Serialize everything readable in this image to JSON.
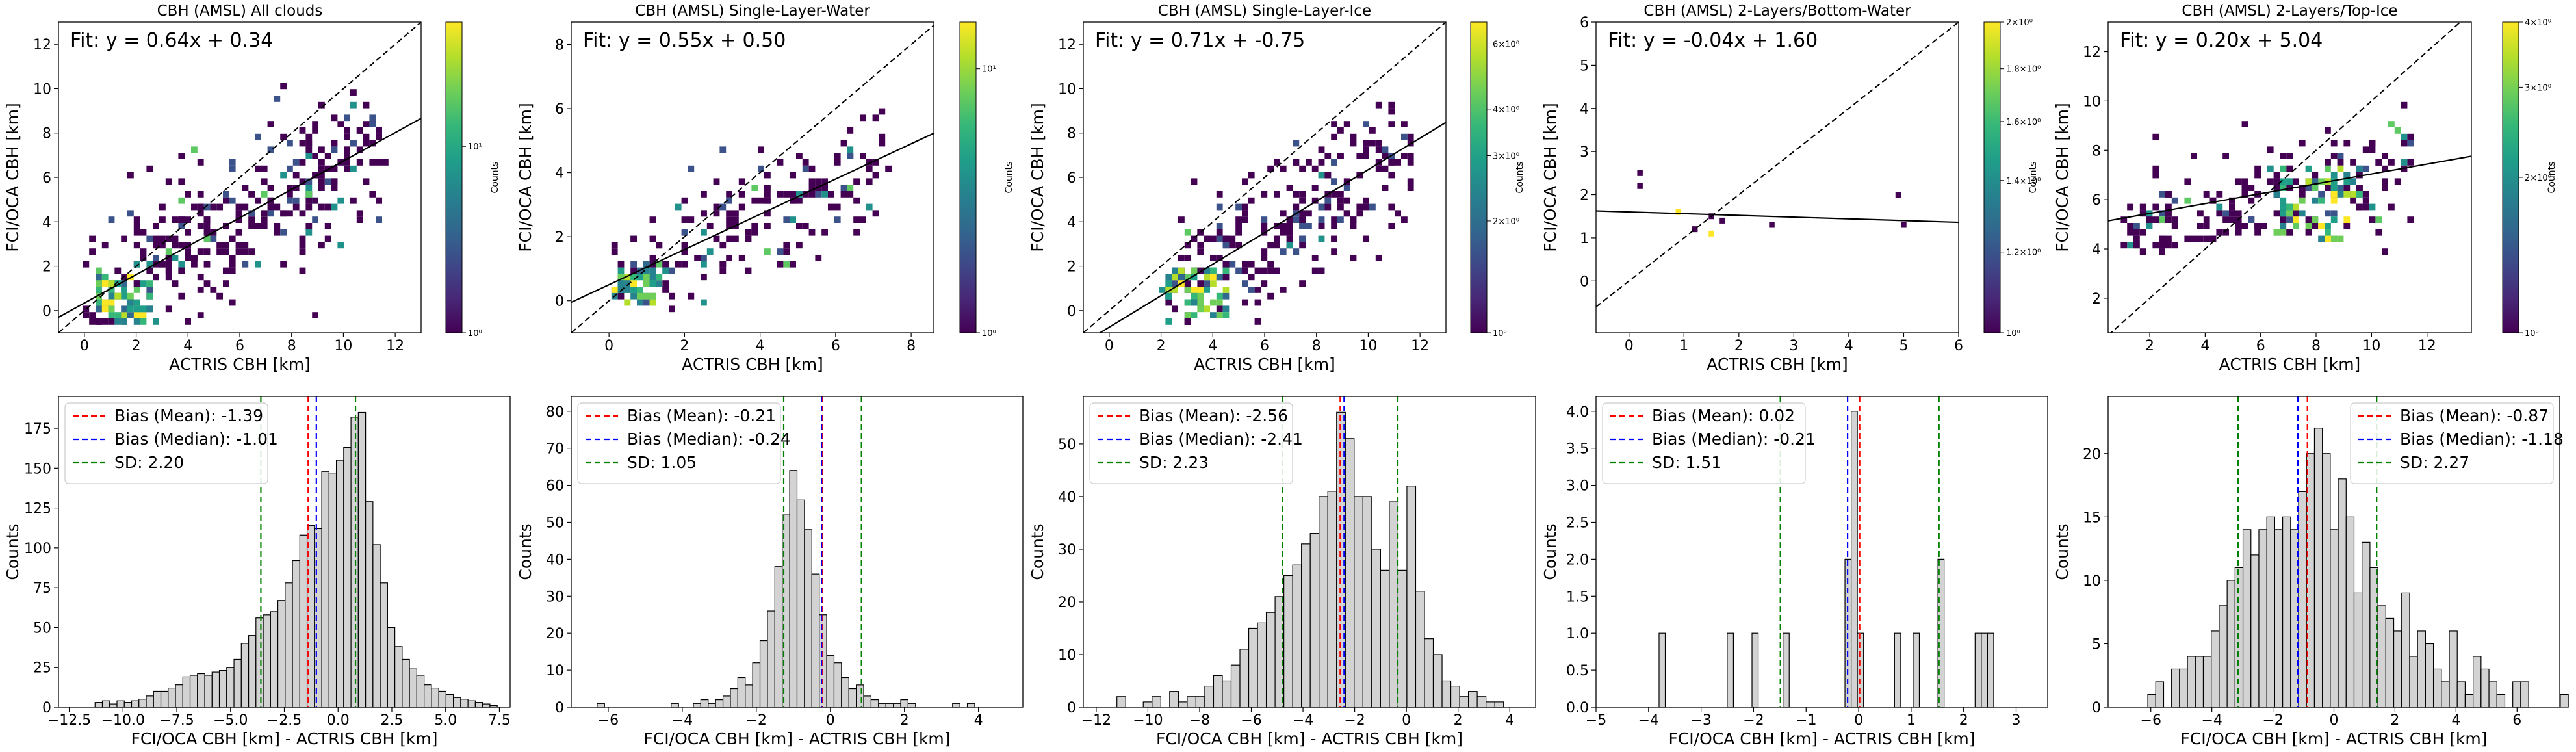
{
  "colors": {
    "bias_mean": "#ff0000",
    "bias_median": "#0000ff",
    "sd": "#008000",
    "hist_fill": "#d3d3d3",
    "hist_edge": "#000000",
    "viridis": [
      "#440154",
      "#482878",
      "#3e4989",
      "#31688e",
      "#26828e",
      "#1f9e89",
      "#35b779",
      "#6ece58",
      "#b5de2b",
      "#fde725"
    ]
  },
  "chart_data": [
    {
      "type": "heatmap",
      "title": "CBH (AMSL) All clouds",
      "xlabel": "ACTRIS CBH [km]",
      "ylabel": "FCI/OCA CBH [km]",
      "fit_text": "Fit: y = 0.64x + 0.34",
      "fit": {
        "slope": 0.64,
        "intercept": 0.34
      },
      "xlim": [
        -1,
        13
      ],
      "ylim": [
        -1,
        13
      ],
      "xticks": [
        0,
        2,
        4,
        6,
        8,
        10,
        12
      ],
      "yticks": [
        0,
        2,
        4,
        6,
        8,
        10,
        12
      ],
      "colorbar": {
        "label": "Counts",
        "scale": "log",
        "ticks": [
          "10⁰",
          "10¹"
        ],
        "tick_fracs": [
          0.0,
          0.6
        ]
      },
      "cloud": {
        "x_range": [
          0,
          11.5
        ],
        "y_range": [
          -0.5,
          10.5
        ],
        "slope": 0.64,
        "intercept": 0.34,
        "spread": 1.7,
        "dense_x": [
          0.3,
          2.5
        ],
        "dense_y": [
          -0.3,
          1.8
        ],
        "count": 330
      }
    },
    {
      "type": "heatmap",
      "title": "CBH (AMSL) Single-Layer-Water",
      "xlabel": "ACTRIS CBH [km]",
      "ylabel": "FCI/OCA CBH [km]",
      "fit_text": "Fit: y = 0.55x + 0.50",
      "fit": {
        "slope": 0.55,
        "intercept": 0.5
      },
      "xlim": [
        -1,
        8.6
      ],
      "ylim": [
        -1,
        8.7
      ],
      "xticks": [
        0,
        2,
        4,
        6,
        8
      ],
      "yticks": [
        0,
        2,
        4,
        6,
        8
      ],
      "colorbar": {
        "label": "Counts",
        "scale": "log",
        "ticks": [
          "10⁰",
          "10¹"
        ],
        "tick_fracs": [
          0.0,
          0.85
        ]
      },
      "cloud": {
        "x_range": [
          0,
          7.3
        ],
        "y_range": [
          -0.3,
          6.6
        ],
        "slope": 0.55,
        "intercept": 0.5,
        "spread": 1.0,
        "dense_x": [
          0.1,
          1.2
        ],
        "dense_y": [
          0.0,
          1.2
        ],
        "count": 170
      }
    },
    {
      "type": "heatmap",
      "title": "CBH (AMSL) Single-Layer-Ice",
      "xlabel": "ACTRIS CBH [km]",
      "ylabel": "FCI/OCA CBH [km]",
      "fit_text": "Fit: y = 0.71x + -0.75",
      "fit": {
        "slope": 0.71,
        "intercept": -0.75
      },
      "xlim": [
        -1,
        13
      ],
      "ylim": [
        -1,
        13
      ],
      "xticks": [
        0,
        2,
        4,
        6,
        8,
        10,
        12
      ],
      "yticks": [
        0,
        2,
        4,
        6,
        8,
        10,
        12
      ],
      "colorbar": {
        "label": "Counts",
        "scale": "log",
        "ticks": [
          "10⁰",
          "2×10⁰",
          "3×10⁰",
          "4×10⁰",
          "6×10⁰"
        ],
        "tick_fracs": [
          0.0,
          0.36,
          0.57,
          0.72,
          0.93
        ]
      },
      "cloud": {
        "x_range": [
          2,
          11.5
        ],
        "y_range": [
          -0.5,
          10.5
        ],
        "slope": 0.71,
        "intercept": -0.75,
        "spread": 1.7,
        "dense_x": [
          2.0,
          4.5
        ],
        "dense_y": [
          -0.3,
          2.0
        ],
        "count": 260
      }
    },
    {
      "type": "heatmap",
      "title": "CBH (AMSL) 2-Layers/Bottom-Water",
      "xlabel": "ACTRIS CBH [km]",
      "ylabel": "FCI/OCA CBH [km]",
      "fit_text": "Fit: y = -0.04x + 1.60",
      "fit": {
        "slope": -0.04,
        "intercept": 1.6
      },
      "xlim": [
        -0.6,
        6
      ],
      "ylim": [
        -1.2,
        6
      ],
      "xticks": [
        0,
        1,
        2,
        3,
        4,
        5,
        6
      ],
      "yticks": [
        0,
        1,
        2,
        3,
        4,
        5,
        6
      ],
      "colorbar": {
        "label": "Counts",
        "scale": "log",
        "ticks": [
          "10⁰",
          "1.2×10⁰",
          "1.4×10⁰",
          "1.6×10⁰",
          "1.8×10⁰",
          "2×10⁰"
        ],
        "tick_fracs": [
          0.0,
          0.26,
          0.49,
          0.68,
          0.85,
          1.0
        ]
      },
      "cells": [
        {
          "x": 0.2,
          "y": 2.5,
          "v": 0.0
        },
        {
          "x": 0.2,
          "y": 2.2,
          "v": 0.0
        },
        {
          "x": 0.9,
          "y": 1.6,
          "v": 1.0
        },
        {
          "x": 1.2,
          "y": 1.2,
          "v": 0.0
        },
        {
          "x": 1.5,
          "y": 1.1,
          "v": 1.0
        },
        {
          "x": 1.5,
          "y": 1.5,
          "v": 0.0
        },
        {
          "x": 1.7,
          "y": 1.4,
          "v": 0.0
        },
        {
          "x": 2.6,
          "y": 1.3,
          "v": 0.0
        },
        {
          "x": 4.9,
          "y": 2.0,
          "v": 0.0
        },
        {
          "x": 5.0,
          "y": 1.3,
          "v": 0.0
        }
      ]
    },
    {
      "type": "heatmap",
      "title": "CBH (AMSL) 2-Layers/Top-Ice",
      "xlabel": "ACTRIS CBH [km]",
      "ylabel": "FCI/OCA CBH [km]",
      "fit_text": "Fit: y = 0.20x + 5.04",
      "fit": {
        "slope": 0.2,
        "intercept": 5.04
      },
      "xlim": [
        0.5,
        13.6
      ],
      "ylim": [
        0.6,
        13.2
      ],
      "xticks": [
        2,
        4,
        6,
        8,
        10,
        12
      ],
      "yticks": [
        2,
        4,
        6,
        8,
        10,
        12
      ],
      "colorbar": {
        "label": "Counts",
        "scale": "log",
        "ticks": [
          "10⁰",
          "2×10⁰",
          "3×10⁰",
          "4×10⁰"
        ],
        "tick_fracs": [
          0.0,
          0.5,
          0.79,
          1.0
        ]
      },
      "cloud": {
        "x_range": [
          1,
          11.5
        ],
        "y_range": [
          3.5,
          10
        ],
        "slope": 0.2,
        "intercept": 5.04,
        "spread": 1.1,
        "dense_x": [
          6.5,
          9.5
        ],
        "dense_y": [
          4.5,
          7.5
        ],
        "count": 210
      }
    },
    {
      "type": "bar",
      "subtype": "histogram",
      "xlabel": "FCI/OCA CBH [km] - ACTRIS CBH [km]",
      "ylabel": "Counts",
      "xlim": [
        -13,
        8
      ],
      "ylim": [
        0,
        195
      ],
      "xticks": [
        -12.5,
        -10.0,
        -7.5,
        -5.0,
        -2.5,
        0.0,
        2.5,
        5.0,
        7.5
      ],
      "xtick_labels": [
        "−12.5",
        "−10.0",
        "−7.5",
        "−5.0",
        "−2.5",
        "0.0",
        "2.5",
        "5.0",
        "7.5"
      ],
      "yticks": [
        0,
        25,
        50,
        75,
        100,
        125,
        150,
        175
      ],
      "bins": {
        "start": -11.3,
        "width": 0.34,
        "counts": [
          3,
          4,
          2,
          4,
          3,
          4,
          5,
          7,
          10,
          10,
          12,
          14,
          19,
          20,
          21,
          20,
          22,
          23,
          25,
          30,
          40,
          45,
          56,
          58,
          60,
          67,
          78,
          92,
          108,
          114,
          112,
          148,
          147,
          155,
          163,
          182,
          185,
          129,
          102,
          78,
          50,
          38,
          30,
          24,
          20,
          14,
          12,
          10,
          8,
          6,
          5,
          4,
          3,
          2,
          1
        ]
      },
      "lines": {
        "bias_mean": -1.39,
        "bias_median": -1.01,
        "sd_low": -3.59,
        "sd_high": 0.81
      },
      "legend": {
        "placement": "upper left",
        "entries": [
          "Bias (Mean): -1.39",
          "Bias (Median): -1.01",
          "SD: 2.20"
        ]
      }
    },
    {
      "type": "bar",
      "subtype": "histogram",
      "xlabel": "FCI/OCA CBH [km] - ACTRIS CBH [km]",
      "ylabel": "Counts",
      "xlim": [
        -7,
        5.2
      ],
      "ylim": [
        0,
        84
      ],
      "xticks": [
        -6,
        -4,
        -2,
        0,
        2,
        4
      ],
      "xtick_labels": [
        "−6",
        "−4",
        "−2",
        "0",
        "2",
        "4"
      ],
      "yticks": [
        0,
        10,
        20,
        30,
        40,
        50,
        60,
        70,
        80
      ],
      "bins": {
        "start": -6.3,
        "width": 0.2,
        "counts": [
          1,
          0,
          0,
          0,
          0,
          0,
          0,
          0,
          0,
          0,
          1,
          0,
          0,
          1,
          2,
          1,
          2,
          3,
          5,
          8,
          6,
          12,
          18,
          26,
          38,
          52,
          64,
          56,
          48,
          36,
          25,
          14,
          12,
          8,
          5,
          6,
          3,
          2,
          1,
          1,
          1,
          2,
          1,
          0,
          0,
          0,
          0,
          0,
          1,
          0,
          1
        ]
      },
      "lines": {
        "bias_mean": -0.21,
        "bias_median": -0.24,
        "sd_low": -1.26,
        "sd_high": 0.84
      },
      "legend": {
        "placement": "upper left",
        "entries": [
          "Bias (Mean): -0.21",
          "Bias (Median): -0.24",
          "SD: 1.05"
        ]
      }
    },
    {
      "type": "bar",
      "subtype": "histogram",
      "xlabel": "FCI/OCA CBH [km] - ACTRIS CBH [km]",
      "ylabel": "Counts",
      "xlim": [
        -12.5,
        5
      ],
      "ylim": [
        0,
        59
      ],
      "xticks": [
        -12,
        -10,
        -8,
        -6,
        -4,
        -2,
        0,
        2,
        4
      ],
      "xtick_labels": [
        "−12",
        "−10",
        "−8",
        "−6",
        "−4",
        "−2",
        "0",
        "2",
        "4"
      ],
      "yticks": [
        0,
        10,
        20,
        30,
        40,
        50
      ],
      "bins": {
        "start": -11.2,
        "width": 0.34,
        "counts": [
          2,
          0,
          0,
          1,
          2,
          0,
          3,
          1,
          2,
          2,
          4,
          6,
          5,
          8,
          11,
          15,
          16,
          18,
          21,
          25,
          27,
          31,
          33,
          40,
          41,
          56,
          51,
          40,
          40,
          30,
          26,
          39,
          26,
          42,
          22,
          13,
          10,
          5,
          4,
          2,
          3,
          2,
          1,
          1
        ]
      },
      "lines": {
        "bias_mean": -2.56,
        "bias_median": -2.41,
        "sd_low": -4.79,
        "sd_high": -0.33
      },
      "legend": {
        "placement": "upper left",
        "entries": [
          "Bias (Mean): -2.56",
          "Bias (Median): -2.41",
          "SD: 2.23"
        ]
      }
    },
    {
      "type": "bar",
      "subtype": "histogram",
      "xlabel": "FCI/OCA CBH [km] - ACTRIS CBH [km]",
      "ylabel": "Counts",
      "xlim": [
        -5,
        3.6
      ],
      "ylim": [
        0,
        4.2
      ],
      "xticks": [
        -5,
        -4,
        -3,
        -2,
        -1,
        0,
        1,
        2,
        3
      ],
      "xtick_labels": [
        "−5",
        "−4",
        "−3",
        "−2",
        "−1",
        "0",
        "1",
        "2",
        "3"
      ],
      "yticks": [
        0.0,
        0.5,
        1.0,
        1.5,
        2.0,
        2.5,
        3.0,
        3.5,
        4.0
      ],
      "ytick_labels": [
        "0.0",
        "0.5",
        "1.0",
        "1.5",
        "2.0",
        "2.5",
        "3.0",
        "3.5",
        "4.0"
      ],
      "bins": {
        "start": -3.8,
        "width": 0.118,
        "counts": [
          1,
          0,
          0,
          0,
          0,
          0,
          0,
          0,
          0,
          0,
          0,
          1,
          0,
          0,
          0,
          1,
          0,
          0,
          0,
          0,
          1,
          0,
          0,
          0,
          0,
          0,
          0,
          0,
          0,
          0,
          2,
          4,
          1,
          0,
          0,
          0,
          0,
          0,
          1,
          0,
          0,
          1,
          0,
          0,
          0,
          2,
          0,
          0,
          0,
          0,
          0,
          1,
          1,
          1
        ]
      },
      "lines": {
        "bias_mean": 0.02,
        "bias_median": -0.21,
        "sd_low": -1.49,
        "sd_high": 1.53
      },
      "legend": {
        "placement": "upper left",
        "entries": [
          "Bias (Mean): 0.02",
          "Bias (Median): -0.21",
          "SD: 1.51"
        ]
      }
    },
    {
      "type": "bar",
      "subtype": "histogram",
      "xlabel": "FCI/OCA CBH [km] - ACTRIS CBH [km]",
      "ylabel": "Counts",
      "xlim": [
        -7.4,
        7.4
      ],
      "ylim": [
        0,
        24.5
      ],
      "xticks": [
        -6,
        -4,
        -2,
        0,
        2,
        4,
        6
      ],
      "xtick_labels": [
        "−6",
        "−4",
        "−2",
        "0",
        "2",
        "4",
        "6"
      ],
      "yticks": [
        0,
        5,
        10,
        15,
        20
      ],
      "bins": {
        "start": -6.1,
        "width": 0.26,
        "counts": [
          1,
          2,
          0,
          3,
          3,
          4,
          4,
          4,
          6,
          8,
          10,
          11,
          14,
          12,
          14,
          15,
          14,
          15,
          14,
          17,
          20,
          22,
          20,
          14,
          18,
          15,
          9,
          13,
          11,
          8,
          7,
          6,
          9,
          4,
          6,
          5,
          3,
          2,
          6,
          2,
          1,
          4,
          3,
          2,
          1,
          0,
          2,
          2,
          0,
          0,
          0,
          0,
          1
        ]
      },
      "lines": {
        "bias_mean": -0.87,
        "bias_median": -1.18,
        "sd_low": -3.14,
        "sd_high": 1.4
      },
      "legend": {
        "placement": "upper right",
        "entries": [
          "Bias (Mean): -0.87",
          "Bias (Median): -1.18",
          "SD: 2.27"
        ]
      }
    }
  ]
}
